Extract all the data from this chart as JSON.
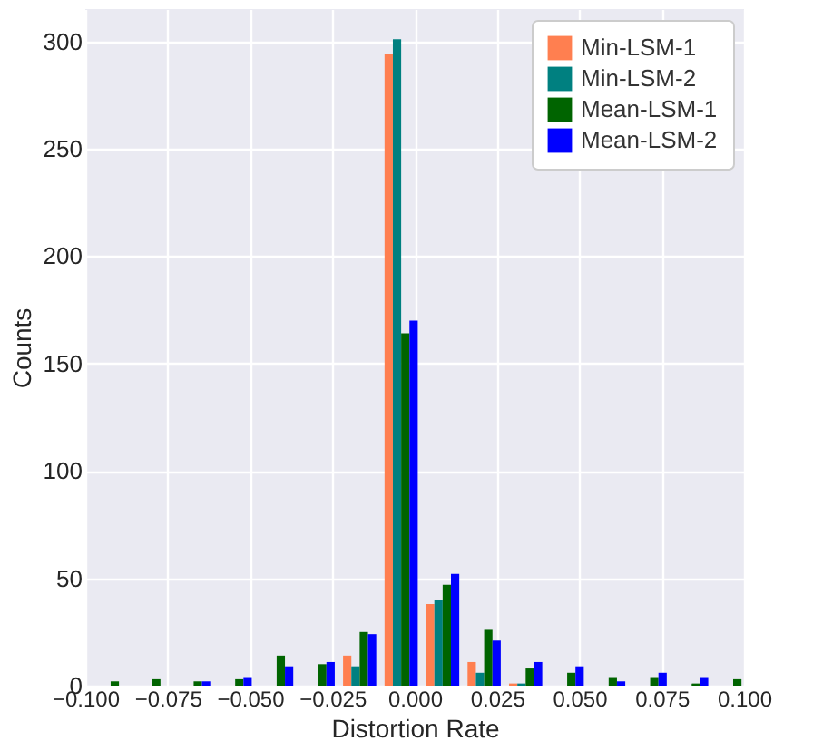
{
  "chart_data": {
    "type": "histogram",
    "xlabel": "Distortion Rate",
    "ylabel": "Counts",
    "bins": [
      -0.0986,
      -0.086,
      -0.0734,
      -0.0608,
      -0.0482,
      -0.0356,
      -0.023,
      -0.0104,
      0.0022,
      0.0148,
      0.0274,
      0.04,
      0.0526,
      0.0652,
      0.0778,
      0.0904,
      0.103
    ],
    "series": [
      {
        "name": "Min-LSM-1",
        "color": "#ff7f50",
        "values": [
          0,
          0,
          0,
          0,
          0,
          0,
          14,
          294,
          38,
          11,
          1,
          0,
          0,
          0,
          0,
          0
        ]
      },
      {
        "name": "Min-LSM-2",
        "color": "#008080",
        "values": [
          0,
          0,
          0,
          0,
          0,
          0,
          9,
          301,
          40,
          6,
          1,
          0,
          0,
          0,
          0,
          0
        ]
      },
      {
        "name": "Mean-LSM-1",
        "color": "#006400",
        "values": [
          2,
          3,
          2,
          3,
          14,
          10,
          25,
          164,
          47,
          26,
          8,
          6,
          4,
          4,
          1,
          3
        ]
      },
      {
        "name": "Mean-LSM-2",
        "color": "#0000ff",
        "values": [
          0,
          0,
          2,
          4,
          9,
          11,
          24,
          170,
          52,
          21,
          11,
          9,
          2,
          6,
          4,
          0
        ]
      }
    ],
    "xlim": [
      -0.1,
      0.1
    ],
    "ylim": [
      0,
      315
    ],
    "xticks": [
      {
        "value": -0.1,
        "label": "−0.100"
      },
      {
        "value": -0.075,
        "label": "−0.075"
      },
      {
        "value": -0.05,
        "label": "−0.050"
      },
      {
        "value": -0.025,
        "label": "−0.025"
      },
      {
        "value": 0,
        "label": "0.000"
      },
      {
        "value": 0.025,
        "label": "0.025"
      },
      {
        "value": 0.05,
        "label": "0.050"
      },
      {
        "value": 0.075,
        "label": "0.075"
      },
      {
        "value": 0.1,
        "label": "0.100"
      }
    ],
    "yticks": [
      0,
      50,
      100,
      150,
      200,
      250,
      300
    ],
    "grid": true,
    "legend": "top right"
  }
}
